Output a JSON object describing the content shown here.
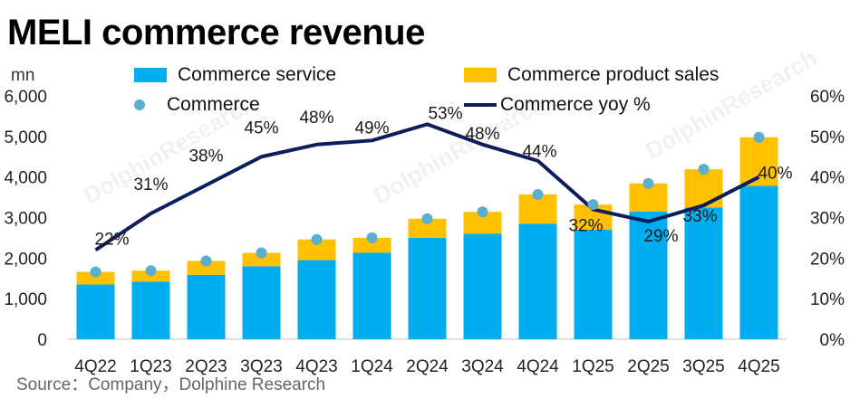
{
  "title": "MELI commerce revenue",
  "unit": "mn",
  "source": "Source：Company，Dolphine Research",
  "watermark": "DolphinResearch",
  "colors": {
    "service": "#00aeef",
    "product": "#ffc000",
    "dot": "#5aafcf",
    "line": "#0d1e5c",
    "axis": "#222222"
  },
  "legend": {
    "service": "Commerce service",
    "product": "Commerce product sales",
    "commerce": "Commerce",
    "yoy": "Commerce yoy %"
  },
  "chart_data": {
    "type": "bar",
    "stacked": true,
    "categories": [
      "4Q22",
      "1Q23",
      "2Q23",
      "3Q23",
      "4Q23",
      "1Q24",
      "2Q24",
      "3Q24",
      "4Q24",
      "1Q25",
      "2Q25",
      "3Q25",
      "4Q25"
    ],
    "series": [
      {
        "name": "Commerce service",
        "values": [
          1350,
          1420,
          1590,
          1800,
          1950,
          2130,
          2500,
          2600,
          2850,
          2700,
          3150,
          3250,
          3780
        ]
      },
      {
        "name": "Commerce product sales",
        "values": [
          310,
          270,
          340,
          330,
          510,
          370,
          470,
          540,
          720,
          620,
          690,
          940,
          1200
        ]
      }
    ],
    "total": {
      "name": "Commerce",
      "values": [
        1660,
        1690,
        1930,
        2130,
        2460,
        2500,
        2970,
        3140,
        3570,
        3320,
        3840,
        4190,
        4980
      ]
    },
    "yoy": {
      "name": "Commerce yoy %",
      "values": [
        22,
        31,
        38,
        45,
        48,
        49,
        53,
        48,
        44,
        32,
        29,
        33,
        40
      ],
      "labels": [
        "22%",
        "31%",
        "38%",
        "45%",
        "48%",
        "49%",
        "53%",
        "48%",
        "44%",
        "32%",
        "29%",
        "33%",
        "40%"
      ]
    },
    "ylim": [
      0,
      6000
    ],
    "y_ticks": [
      "0",
      "1,000",
      "2,000",
      "3,000",
      "4,000",
      "5,000",
      "6,000"
    ],
    "y2lim": [
      0,
      60
    ],
    "y2_ticks": [
      "0%",
      "10%",
      "20%",
      "30%",
      "40%",
      "50%",
      "60%"
    ],
    "xlabel": "",
    "ylabel": "mn"
  }
}
